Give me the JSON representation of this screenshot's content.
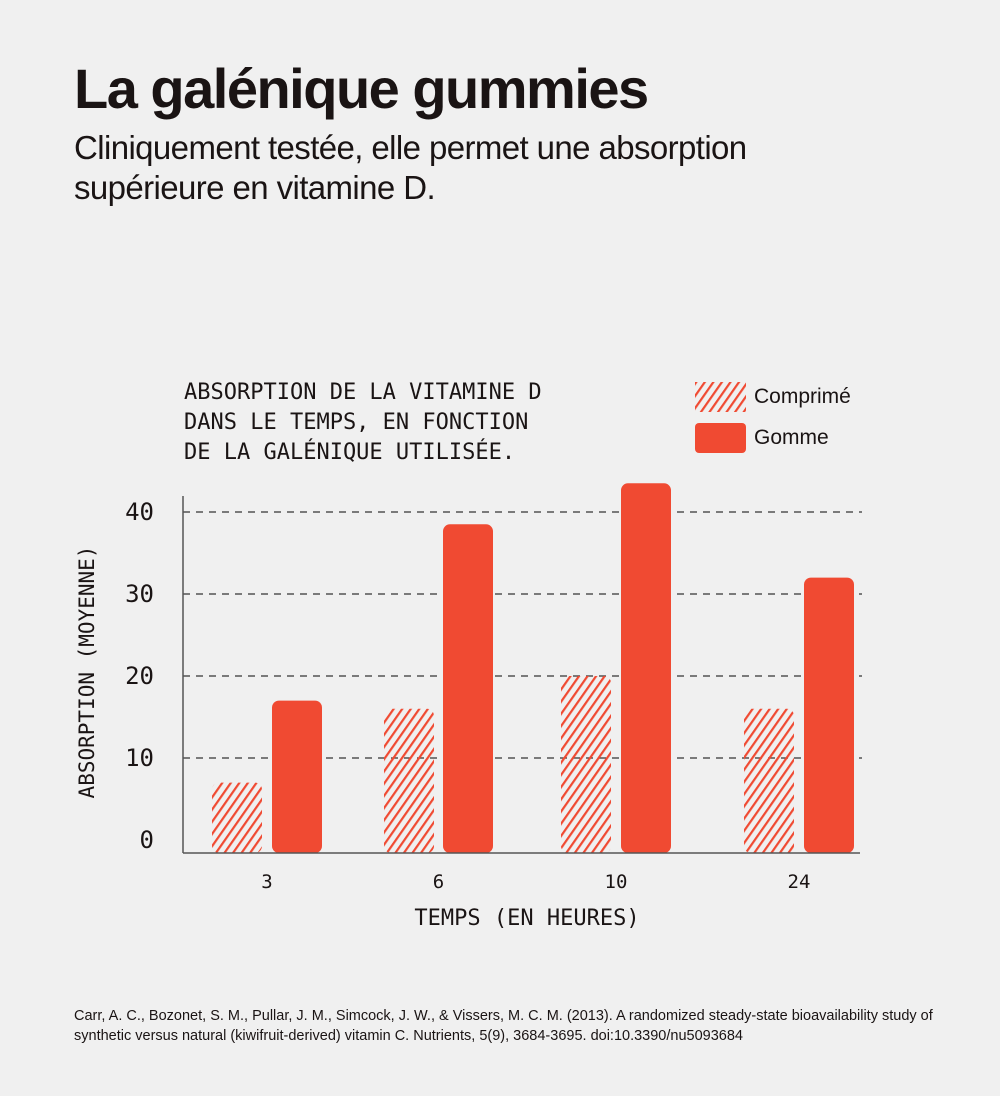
{
  "header": {
    "title": "La galénique gummies",
    "subtitle": "Cliniquement testée, elle permet une absorption supérieure en vitamine D."
  },
  "chart_data": {
    "type": "bar",
    "title": "ABSORPTION DE LA VITAMINE D\nDANS LE TEMPS, EN FONCTION\nDE LA GALÉNIQUE UTILISÉE.",
    "xlabel": "TEMPS (EN HEURES)",
    "ylabel": "ABSORPTION (MOYENNE)",
    "categories": [
      "3",
      "6",
      "10",
      "24"
    ],
    "series": [
      {
        "name": "Comprimé",
        "values": [
          7,
          16,
          20,
          16
        ],
        "style": "hatched",
        "color": "#f04a32"
      },
      {
        "name": "Gomme",
        "values": [
          17,
          38.5,
          43.5,
          32
        ],
        "style": "solid",
        "color": "#f04a32"
      }
    ],
    "ylim": [
      0,
      40
    ],
    "yticks": [
      "0",
      "10",
      "20",
      "30",
      "40"
    ],
    "grid": "horizontal dashed",
    "legend_position": "top-right"
  },
  "reference": "Carr, A. C., Bozonet, S. M., Pullar, J. M., Simcock, J. W., & Vissers, M. C. M. (2013). A randomized steady-state bioavailability study of synthetic versus natural (kiwifruit-derived) vitamin C. Nutrients, 5(9), 3684-3695. doi:10.3390/nu5093684"
}
